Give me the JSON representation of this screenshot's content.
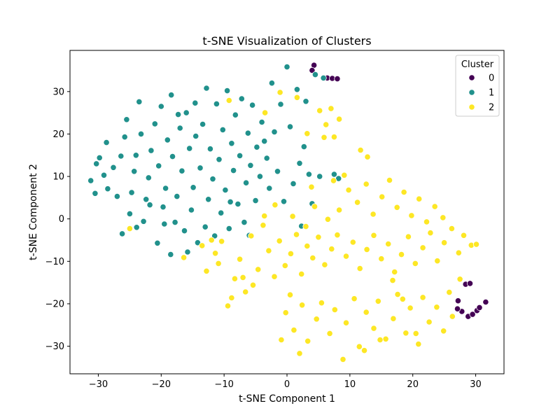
{
  "chart_data": {
    "type": "scatter",
    "title": "t-SNE Visualization of Clusters",
    "xlabel": "t-SNE Component 1",
    "ylabel": "t-SNE Component 2",
    "xlim": [
      -34.5,
      34.5
    ],
    "ylim": [
      -36.5,
      39.7
    ],
    "xticks": [
      -30,
      -20,
      -10,
      0,
      10,
      20,
      30
    ],
    "yticks": [
      -30,
      -20,
      -10,
      0,
      10,
      20,
      30
    ],
    "grid": false,
    "legend": {
      "title": "Cluster",
      "placement": "top-right"
    },
    "series": [
      {
        "name": "0",
        "color": "#440154",
        "points": [
          [
            4.3,
            36.2
          ],
          [
            4.0,
            35.0
          ],
          [
            6.4,
            33.2
          ],
          [
            7.2,
            33.1
          ],
          [
            8.0,
            33.0
          ],
          [
            27.2,
            -19.3
          ],
          [
            27.8,
            -21.8
          ],
          [
            27.1,
            -21.2
          ],
          [
            28.4,
            -15.4
          ],
          [
            29.1,
            -15.2
          ],
          [
            28.8,
            -23.0
          ],
          [
            29.5,
            -22.5
          ],
          [
            30.2,
            -21.6
          ],
          [
            30.6,
            -20.9
          ],
          [
            31.6,
            -19.6
          ]
        ]
      },
      {
        "name": "1",
        "color": "#21918c",
        "points": [
          [
            -31.2,
            9.0
          ],
          [
            -30.5,
            6.0
          ],
          [
            -30.3,
            13.0
          ],
          [
            -29.8,
            14.4
          ],
          [
            -29.1,
            10.3
          ],
          [
            -28.5,
            7.1
          ],
          [
            -28.7,
            18.0
          ],
          [
            -27.6,
            12.1
          ],
          [
            -27.0,
            5.3
          ],
          [
            -26.4,
            14.8
          ],
          [
            -25.8,
            19.3
          ],
          [
            -25.5,
            23.4
          ],
          [
            -25.0,
            1.2
          ],
          [
            -24.7,
            6.2
          ],
          [
            -24.3,
            11.2
          ],
          [
            -24.0,
            15.0
          ],
          [
            -23.5,
            27.6
          ],
          [
            -23.2,
            20.0
          ],
          [
            -22.8,
            -0.6
          ],
          [
            -22.4,
            4.6
          ],
          [
            -22.0,
            9.7
          ],
          [
            -21.6,
            16.1
          ],
          [
            -21.0,
            22.4
          ],
          [
            -20.6,
            -5.7
          ],
          [
            -20.4,
            12.5
          ],
          [
            -20.0,
            26.5
          ],
          [
            -19.7,
            2.8
          ],
          [
            -19.3,
            7.2
          ],
          [
            -19.0,
            18.6
          ],
          [
            -18.5,
            -8.4
          ],
          [
            -18.4,
            29.2
          ],
          [
            -18.2,
            14.7
          ],
          [
            -17.8,
            -0.8
          ],
          [
            -17.5,
            5.3
          ],
          [
            -17.0,
            21.4
          ],
          [
            -16.7,
            11.3
          ],
          [
            -16.3,
            -2.8
          ],
          [
            -16.0,
            25.0
          ],
          [
            -15.8,
            -7.8
          ],
          [
            -15.5,
            16.6
          ],
          [
            -15.2,
            2.1
          ],
          [
            -14.9,
            7.4
          ],
          [
            -14.5,
            19.5
          ],
          [
            -14.2,
            -5.6
          ],
          [
            -13.8,
            12.0
          ],
          [
            -13.4,
            22.3
          ],
          [
            -13.0,
            -1.9
          ],
          [
            -12.8,
            30.8
          ],
          [
            -12.5,
            4.6
          ],
          [
            -12.2,
            16.5
          ],
          [
            -11.8,
            9.4
          ],
          [
            -11.5,
            -4.0
          ],
          [
            -11.2,
            27.1
          ],
          [
            -10.8,
            14.0
          ],
          [
            -10.5,
            1.4
          ],
          [
            -10.2,
            21.0
          ],
          [
            -9.8,
            6.8
          ],
          [
            -9.5,
            30.2
          ],
          [
            -9.2,
            -2.3
          ],
          [
            -8.8,
            17.8
          ],
          [
            -8.5,
            11.4
          ],
          [
            -8.2,
            24.5
          ],
          [
            -7.8,
            3.5
          ],
          [
            -7.5,
            14.9
          ],
          [
            -7.2,
            28.3
          ],
          [
            -6.8,
            -0.8
          ],
          [
            -6.5,
            8.5
          ],
          [
            -6.2,
            20.2
          ],
          [
            -5.8,
            12.6
          ],
          [
            -5.5,
            26.8
          ],
          [
            -5.0,
            4.3
          ],
          [
            -4.8,
            16.9
          ],
          [
            -4.3,
            10.0
          ],
          [
            -4.0,
            22.8
          ],
          [
            -3.6,
            18.3
          ],
          [
            -3.2,
            14.3
          ],
          [
            -2.8,
            7.2
          ],
          [
            -2.4,
            32.0
          ],
          [
            -2.0,
            20.5
          ],
          [
            -1.5,
            11.2
          ],
          [
            -1.0,
            27.0
          ],
          [
            -0.5,
            4.1
          ],
          [
            0.0,
            35.8
          ],
          [
            0.5,
            21.7
          ],
          [
            1.0,
            8.3
          ],
          [
            1.6,
            30.5
          ],
          [
            2.0,
            13.1
          ],
          [
            2.3,
            -1.7
          ],
          [
            2.7,
            17.0
          ],
          [
            3.0,
            27.7
          ],
          [
            3.5,
            10.5
          ],
          [
            4.0,
            3.6
          ],
          [
            4.5,
            34.0
          ],
          [
            5.2,
            10.0
          ],
          [
            5.8,
            33.2
          ],
          [
            7.5,
            10.5
          ],
          [
            8.2,
            9.5
          ],
          [
            -26.2,
            -3.5
          ],
          [
            -23.9,
            -2.0
          ],
          [
            -21.8,
            3.3
          ],
          [
            -19.5,
            -1.2
          ],
          [
            -17.3,
            24.6
          ],
          [
            -14.6,
            27.3
          ],
          [
            -9.0,
            4.0
          ],
          [
            -6.0,
            -3.9
          ]
        ]
      },
      {
        "name": "2",
        "color": "#fde725",
        "points": [
          [
            5.2,
            25.5
          ],
          [
            6.2,
            22.2
          ],
          [
            7.0,
            26.0
          ],
          [
            7.5,
            19.3
          ],
          [
            8.3,
            23.5
          ],
          [
            5.9,
            19.2
          ],
          [
            3.2,
            20.1
          ],
          [
            1.6,
            28.6
          ],
          [
            -1.1,
            29.8
          ],
          [
            -3.5,
            25.0
          ],
          [
            -9.2,
            27.9
          ],
          [
            11.7,
            16.2
          ],
          [
            12.8,
            14.6
          ],
          [
            -25.0,
            -2.3
          ],
          [
            -16.4,
            -9.1
          ],
          [
            -13.5,
            -6.3
          ],
          [
            -12.8,
            -12.3
          ],
          [
            -11.4,
            -8.1
          ],
          [
            -10.4,
            -5.3
          ],
          [
            -9.4,
            -20.5
          ],
          [
            -8.3,
            -14.1
          ],
          [
            -7.5,
            -9.5
          ],
          [
            -6.6,
            -17.2
          ],
          [
            -5.7,
            -4.0
          ],
          [
            -4.6,
            -11.9
          ],
          [
            -3.8,
            -1.5
          ],
          [
            -2.9,
            -7.5
          ],
          [
            -2.0,
            -13.6
          ],
          [
            -1.2,
            -5.2
          ],
          [
            -0.3,
            -11.0
          ],
          [
            0.6,
            -8.2
          ],
          [
            1.5,
            -3.7
          ],
          [
            2.3,
            -13.0
          ],
          [
            3.2,
            -6.4
          ],
          [
            4.1,
            -9.2
          ],
          [
            5.0,
            -4.3
          ],
          [
            6.0,
            -10.8
          ],
          [
            7.1,
            -7.1
          ],
          [
            8.0,
            -3.8
          ],
          [
            9.4,
            -8.8
          ],
          [
            10.5,
            -5.5
          ],
          [
            11.6,
            -11.7
          ],
          [
            12.7,
            -7.2
          ],
          [
            13.8,
            -3.9
          ],
          [
            15.0,
            -9.4
          ],
          [
            16.1,
            -5.9
          ],
          [
            17.1,
            -12.5
          ],
          [
            18.2,
            -8.4
          ],
          [
            19.3,
            -4.2
          ],
          [
            20.4,
            -10.5
          ],
          [
            21.6,
            -6.8
          ],
          [
            22.8,
            -3.3
          ],
          [
            23.9,
            -9.9
          ],
          [
            25.0,
            -5.6
          ],
          [
            26.2,
            -2.3
          ],
          [
            27.3,
            -8.0
          ],
          [
            28.1,
            -3.9
          ],
          [
            29.3,
            -6.2
          ],
          [
            30.1,
            -6.0
          ],
          [
            3.0,
            -1.8
          ],
          [
            4.4,
            2.9
          ],
          [
            6.5,
            -0.1
          ],
          [
            8.3,
            2.1
          ],
          [
            9.8,
            6.8
          ],
          [
            11.2,
            3.9
          ],
          [
            12.6,
            8.2
          ],
          [
            13.7,
            1.1
          ],
          [
            15.1,
            5.2
          ],
          [
            16.3,
            9.1
          ],
          [
            17.5,
            2.7
          ],
          [
            18.6,
            6.3
          ],
          [
            19.8,
            0.8
          ],
          [
            21.0,
            4.7
          ],
          [
            22.2,
            -0.7
          ],
          [
            23.5,
            2.9
          ],
          [
            24.8,
            0.3
          ],
          [
            7.4,
            9.0
          ],
          [
            9.1,
            10.3
          ],
          [
            3.9,
            7.5
          ],
          [
            0.9,
            0.6
          ],
          [
            -1.9,
            3.3
          ],
          [
            -3.6,
            0.7
          ],
          [
            -0.2,
            -22.1
          ],
          [
            1.1,
            -26.2
          ],
          [
            2.4,
            -20.3
          ],
          [
            3.3,
            -28.8
          ],
          [
            4.7,
            -23.6
          ],
          [
            5.5,
            -19.8
          ],
          [
            6.8,
            -27.0
          ],
          [
            7.6,
            -21.4
          ],
          [
            8.9,
            -33.1
          ],
          [
            9.4,
            -24.5
          ],
          [
            10.7,
            -18.8
          ],
          [
            11.5,
            -30.1
          ],
          [
            12.6,
            -22.0
          ],
          [
            13.8,
            -25.8
          ],
          [
            14.5,
            -19.4
          ],
          [
            15.7,
            -28.3
          ],
          [
            16.9,
            -23.5
          ],
          [
            17.6,
            -17.8
          ],
          [
            18.9,
            -26.9
          ],
          [
            19.6,
            -21.0
          ],
          [
            20.9,
            -29.5
          ],
          [
            21.6,
            -18.5
          ],
          [
            22.6,
            -24.3
          ],
          [
            23.8,
            -20.8
          ],
          [
            24.9,
            -26.4
          ],
          [
            25.8,
            -17.3
          ],
          [
            26.3,
            -23.0
          ],
          [
            27.5,
            -14.2
          ],
          [
            -0.9,
            -28.5
          ],
          [
            0.5,
            -17.9
          ],
          [
            2.0,
            -31.7
          ],
          [
            12.3,
            -31.0
          ],
          [
            14.8,
            -28.5
          ],
          [
            20.5,
            -27.0
          ],
          [
            -10.9,
            -10.5
          ],
          [
            -8.8,
            -18.6
          ],
          [
            -7.0,
            -13.8
          ],
          [
            -5.4,
            -15.6
          ],
          [
            -12.0,
            -5.0
          ],
          [
            16.8,
            -14.5
          ],
          [
            18.4,
            -18.9
          ]
        ]
      }
    ]
  }
}
